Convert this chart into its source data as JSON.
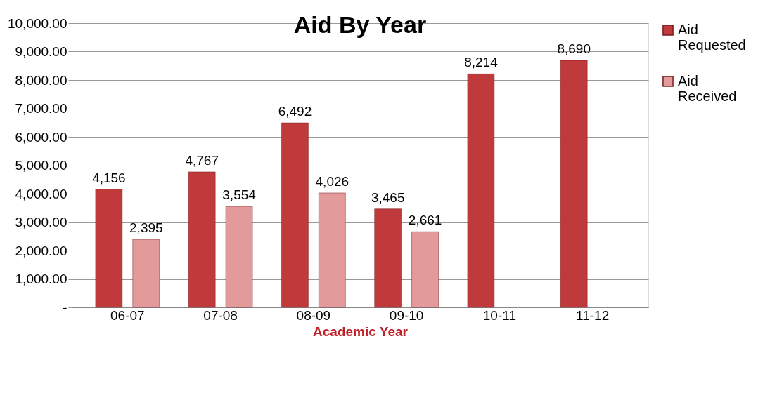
{
  "chart_data": {
    "type": "bar",
    "title": "Aid By Year",
    "xlabel": "Academic Year",
    "categories": [
      "06-07",
      "07-08",
      "08-09",
      "09-10",
      "10-11",
      "11-12"
    ],
    "series": [
      {
        "name": "Aid Requested",
        "color": "#c0393b",
        "values": [
          4156,
          4767,
          6492,
          3465,
          8214,
          8690
        ],
        "value_labels": [
          "4,156",
          "4,767",
          "6,492",
          "3,465",
          "8,214",
          "8,690"
        ]
      },
      {
        "name": "Aid Received",
        "color": "#e39a9a",
        "values": [
          2395,
          3554,
          4026,
          2661,
          null,
          null
        ],
        "value_labels": [
          "2,395",
          "3,554",
          "4,026",
          "2,661",
          null,
          null
        ]
      }
    ],
    "ylim": [
      0,
      10000
    ],
    "yticks": [
      {
        "value": 0,
        "label": "-"
      },
      {
        "value": 1000,
        "label": "1,000.00"
      },
      {
        "value": 2000,
        "label": "2,000.00"
      },
      {
        "value": 3000,
        "label": "3,000.00"
      },
      {
        "value": 4000,
        "label": "4,000.00"
      },
      {
        "value": 5000,
        "label": "5,000.00"
      },
      {
        "value": 6000,
        "label": "6,000.00"
      },
      {
        "value": 7000,
        "label": "7,000.00"
      },
      {
        "value": 8000,
        "label": "8,000.00"
      },
      {
        "value": 9000,
        "label": "9,000.00"
      },
      {
        "value": 10000,
        "label": "10,000.00"
      }
    ],
    "grid": "y",
    "legend": "right"
  }
}
